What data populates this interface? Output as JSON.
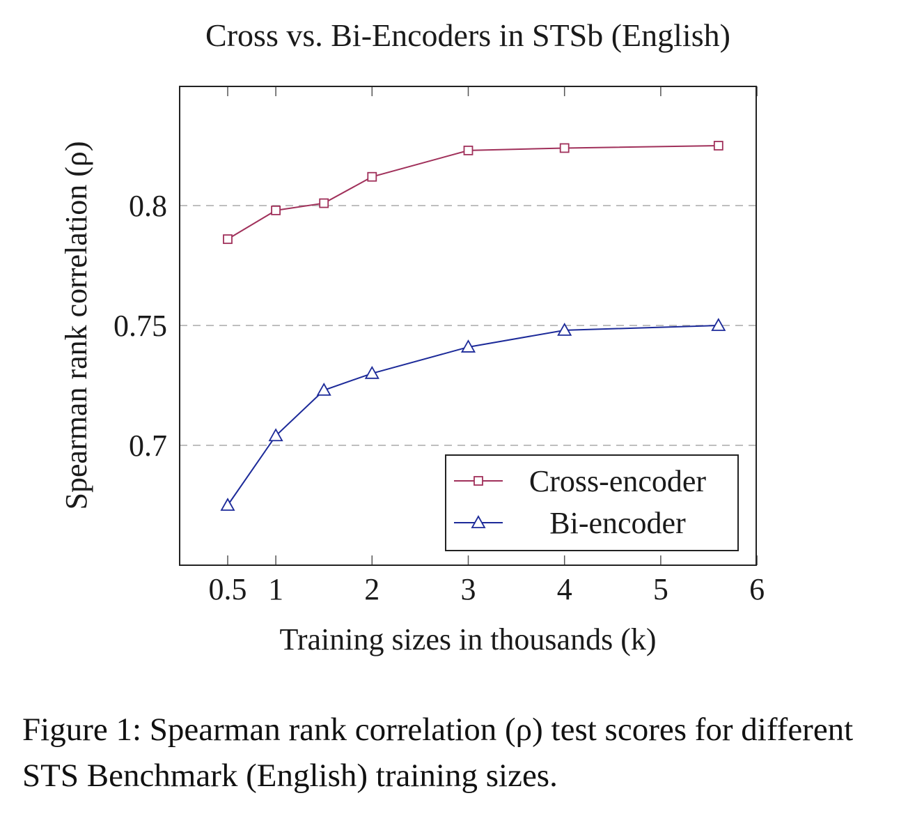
{
  "chart_data": {
    "type": "line",
    "title": "Cross vs. Bi-Encoders in STSb (English)",
    "xlabel": "Training sizes in thousands (k)",
    "ylabel": "Spearman rank correlation (ρ)",
    "xlim": [
      0,
      6
    ],
    "ylim": [
      0.65,
      0.85
    ],
    "x_ticks": [
      0.5,
      1,
      2,
      3,
      4,
      5,
      6
    ],
    "x_tick_labels": [
      "0.5",
      "1",
      "2",
      "3",
      "4",
      "5",
      "6"
    ],
    "y_ticks": [
      0.7,
      0.75,
      0.8
    ],
    "y_tick_labels": [
      "0.7",
      "0.75",
      "0.8"
    ],
    "grid": "horizontal dashed",
    "legend_position": "bottom-right",
    "series": [
      {
        "name": "Cross-encoder",
        "color": "#a0305a",
        "marker": "square",
        "x": [
          0.5,
          1,
          1.5,
          2,
          3,
          4,
          5.6
        ],
        "y": [
          0.786,
          0.798,
          0.801,
          0.812,
          0.823,
          0.824,
          0.825
        ]
      },
      {
        "name": "Bi-encoder",
        "color": "#1c2a99",
        "marker": "triangle",
        "x": [
          0.5,
          1,
          1.5,
          2,
          3,
          4,
          5.6
        ],
        "y": [
          0.675,
          0.704,
          0.723,
          0.73,
          0.741,
          0.748,
          0.75
        ]
      }
    ]
  },
  "caption": {
    "text": "Figure 1: Spearman rank correlation (ρ) test scores for different STS Benchmark (English) training sizes."
  }
}
